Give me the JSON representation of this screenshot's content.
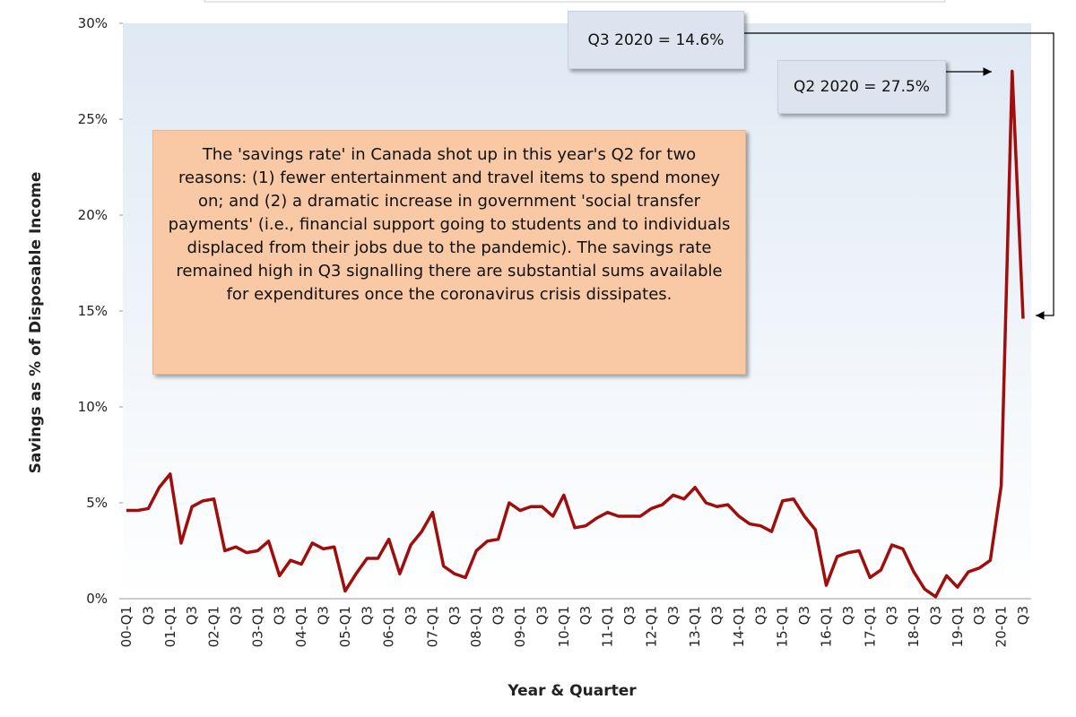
{
  "chart_data": {
    "type": "line",
    "y_axis_label": "Savings as % of Disposable Income",
    "x_axis_label": "Year & Quarter",
    "categories": [
      "00-Q1",
      null,
      "Q3",
      null,
      "01-Q1",
      null,
      "Q3",
      null,
      "02-Q1",
      null,
      "Q3",
      null,
      "03-Q1",
      null,
      "Q3",
      null,
      "04-Q1",
      null,
      "Q3",
      null,
      "05-Q1",
      null,
      "Q3",
      null,
      "06-Q1",
      null,
      "Q3",
      null,
      "07-Q1",
      null,
      "Q3",
      null,
      "08-Q1",
      null,
      "Q3",
      null,
      "09-Q1",
      null,
      "Q3",
      null,
      "10-Q1",
      null,
      "Q3",
      null,
      "11-Q1",
      null,
      "Q3",
      null,
      "12-Q1",
      null,
      "Q3",
      null,
      "13-Q1",
      null,
      "Q3",
      null,
      "14-Q1",
      null,
      "Q3",
      null,
      "15-Q1",
      null,
      "Q3",
      null,
      "16-Q1",
      null,
      "Q3",
      null,
      "17-Q1",
      null,
      "Q3",
      null,
      "18-Q1",
      null,
      "Q3",
      null,
      "19-Q1",
      null,
      "Q3",
      null,
      "20-Q1",
      null,
      "Q3"
    ],
    "series": [
      {
        "color": "#a00d0d",
        "values": [
          4.6,
          4.6,
          4.7,
          5.8,
          6.5,
          2.9,
          4.8,
          5.1,
          5.2,
          2.5,
          2.7,
          2.4,
          2.5,
          3.0,
          1.2,
          2.0,
          1.8,
          2.9,
          2.6,
          2.7,
          0.4,
          1.3,
          2.1,
          2.1,
          3.1,
          1.3,
          2.8,
          3.5,
          4.5,
          1.7,
          1.3,
          1.1,
          2.5,
          3.0,
          3.1,
          5.0,
          4.6,
          4.8,
          4.8,
          4.3,
          5.4,
          3.7,
          3.8,
          4.2,
          4.5,
          4.3,
          4.3,
          4.3,
          4.7,
          4.9,
          5.4,
          5.2,
          5.8,
          5.0,
          4.8,
          4.9,
          4.3,
          3.9,
          3.8,
          3.5,
          5.1,
          5.2,
          4.3,
          3.6,
          0.7,
          2.2,
          2.4,
          2.5,
          1.1,
          1.5,
          2.8,
          2.6,
          1.4,
          0.5,
          0.1,
          1.2,
          0.6,
          1.4,
          1.6,
          2.0,
          5.9,
          27.5,
          14.6
        ]
      }
    ],
    "ylim": [
      0,
      30
    ],
    "yticks": [
      {
        "value": 0,
        "label": "0%"
      },
      {
        "value": 5,
        "label": "5%"
      },
      {
        "value": 10,
        "label": "10%"
      },
      {
        "value": 15,
        "label": "15%"
      },
      {
        "value": 20,
        "label": "20%"
      },
      {
        "value": 25,
        "label": "25%"
      },
      {
        "value": 30,
        "label": "30%"
      }
    ],
    "annotations": [
      "Q3 2020 = 14.6%",
      "Q2 2020 = 27.5%",
      "The 'savings rate' in Canada  shot up in this year's Q2 for two reasons: (1) fewer entertainment and travel items to spend money on; and (2) a dramatic increase in government 'social transfer payments' (i.e., financial support going to students and to individuals displaced from their jobs due to the pandemic). The savings rate remained high in Q3 signalling there are substantial sums available for expenditures once the coronavirus crisis dissipates."
    ]
  }
}
